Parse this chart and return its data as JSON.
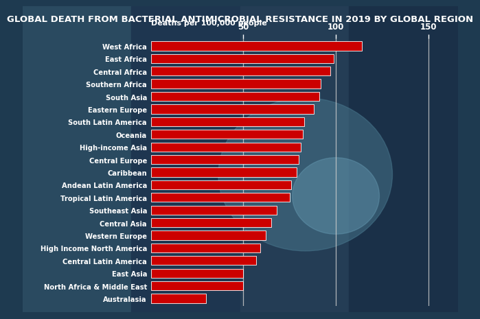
{
  "title": "GLOBAL DEATH FROM BACTERIAL ANTIMICROBIAL RESISTANCE IN 2019 BY GLOBAL REGION",
  "xlabel": "Deaths per 100,000 people",
  "regions": [
    "West Africa",
    "East Africa",
    "Central Africa",
    "Southern Africa",
    "South Asia",
    "Eastern Europe",
    "South Latin America",
    "Oceania",
    "High-income Asia",
    "Central Europe",
    "Caribbean",
    "Andean Latin America",
    "Tropical Latin America",
    "Southeast Asia",
    "Central Asia",
    "Western Europe",
    "High Income North America",
    "Central Latin America",
    "East Asia",
    "North Africa & Middle East",
    "Australasia"
  ],
  "values": [
    114,
    99,
    97,
    92,
    91,
    88,
    83,
    82,
    81,
    80,
    79,
    76,
    75,
    68,
    65,
    62,
    59,
    57,
    50,
    50,
    30
  ],
  "bar_color": "#cc0000",
  "bar_edge_color": "#ffffff",
  "title_bg_color": "#cc0000",
  "title_text_color": "#ffffff",
  "tick_label_color": "#ffffff",
  "bg_color_top": "#3a6070",
  "bg_color_bottom": "#1a2a40",
  "tick_line_color": "#cccccc",
  "xlim": [
    0,
    160
  ],
  "xticks": [
    50,
    100,
    150
  ],
  "title_fontsize": 9.5,
  "bar_label_fontsize": 7.5
}
